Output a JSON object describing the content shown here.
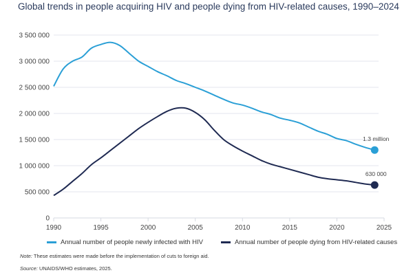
{
  "title": "Global trends in people acquiring HIV and people dying from HIV-related causes, 1990–2024",
  "note_label": "Note:",
  "note_text": " These estimates were made before the implementation of cuts to foreign aid.",
  "source_label": "Source:",
  "source_text": " UNAIDS/WHO estimates, 2025.",
  "chart_data": {
    "type": "line",
    "title": "Global trends in people acquiring HIV and people dying from HIV-related causes, 1990–2024",
    "xlabel": "",
    "ylabel": "",
    "xlim": [
      1990,
      2025
    ],
    "ylim": [
      0,
      3500000
    ],
    "grid": true,
    "legend": "bottom",
    "x_ticks": [
      1990,
      1995,
      2000,
      2005,
      2010,
      2015,
      2020,
      2025
    ],
    "x_tick_labels": [
      "1990",
      "1995",
      "2000",
      "2005",
      "2010",
      "2015",
      "2020",
      "2025"
    ],
    "y_ticks": [
      0,
      500000,
      1000000,
      1500000,
      2000000,
      2500000,
      3000000,
      3500000
    ],
    "y_tick_labels": [
      "0",
      "500 000",
      "1 000 000",
      "1 500 000",
      "2 000 000",
      "2 500 000",
      "3 000 000",
      "3 500 000"
    ],
    "x": [
      1990,
      1991,
      1992,
      1993,
      1994,
      1995,
      1996,
      1997,
      1998,
      1999,
      2000,
      2001,
      2002,
      2003,
      2004,
      2005,
      2006,
      2007,
      2008,
      2009,
      2010,
      2011,
      2012,
      2013,
      2014,
      2015,
      2016,
      2017,
      2018,
      2019,
      2020,
      2021,
      2022,
      2023,
      2024
    ],
    "series": [
      {
        "name": "Annual number of people newly infected with HIV",
        "color": "#2a9fd6",
        "end_label": "1.3 million",
        "values": [
          2520000,
          2850000,
          3000000,
          3080000,
          3250000,
          3320000,
          3360000,
          3300000,
          3150000,
          3000000,
          2900000,
          2800000,
          2720000,
          2630000,
          2570000,
          2500000,
          2430000,
          2350000,
          2270000,
          2200000,
          2160000,
          2100000,
          2030000,
          1980000,
          1910000,
          1870000,
          1820000,
          1740000,
          1660000,
          1600000,
          1520000,
          1480000,
          1410000,
          1350000,
          1300000
        ]
      },
      {
        "name": "Annual number of people dying from HIV-related causes",
        "color": "#1f2a52",
        "end_label": "630 000",
        "values": [
          430000,
          550000,
          700000,
          850000,
          1020000,
          1150000,
          1290000,
          1430000,
          1570000,
          1710000,
          1830000,
          1940000,
          2040000,
          2100000,
          2100000,
          2020000,
          1880000,
          1680000,
          1500000,
          1380000,
          1280000,
          1190000,
          1100000,
          1030000,
          980000,
          930000,
          880000,
          830000,
          780000,
          750000,
          730000,
          710000,
          680000,
          650000,
          630000
        ]
      }
    ]
  }
}
